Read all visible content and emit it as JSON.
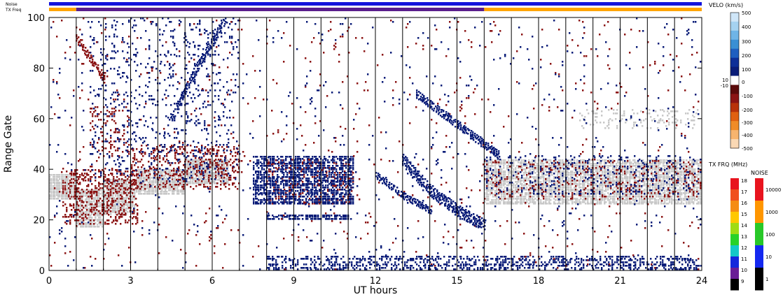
{
  "chart_data": {
    "type": "heatmap",
    "xlabel": "UT hours",
    "ylabel": "Range Gate",
    "xlim": [
      0,
      24
    ],
    "ylim": [
      0,
      100
    ],
    "x_ticks": [
      0,
      3,
      6,
      9,
      12,
      15,
      18,
      21,
      24
    ],
    "y_ticks": [
      0,
      20,
      40,
      60,
      80,
      100
    ],
    "bar_labels": {
      "noise": "Noise",
      "txfreq": "TX Freq"
    },
    "noise_bar": {
      "color": "#1414dc"
    },
    "txfreq_bar": {
      "segments": [
        {
          "x0": 0,
          "x1": 1,
          "color": "#ffa500"
        },
        {
          "x0": 1,
          "x1": 16,
          "color": "#5a1e8c"
        },
        {
          "x0": 16,
          "x1": 24,
          "color": "#ffa500"
        }
      ]
    },
    "scan_boundaries_ut": [
      1,
      2,
      3,
      4,
      5,
      6,
      7,
      8,
      9,
      10,
      11,
      12,
      13,
      14,
      15,
      16,
      17,
      18,
      19,
      20,
      21,
      22,
      23
    ],
    "velocity_scale": {
      "title": "VELO (km/s)",
      "ticks": [
        "500",
        "400",
        "300",
        "200",
        "100",
        "0",
        "10",
        "-10",
        "-100",
        "-200",
        "-300",
        "-400",
        "-500"
      ],
      "colors_top_to_bottom": [
        "#cfe6f8",
        "#a5d2f0",
        "#6fb4e6",
        "#3a8fd4",
        "#1f5fc0",
        "#0e2f98",
        "#0a1c78",
        "#ffffff",
        "#5a0a0a",
        "#8b1414",
        "#b8320a",
        "#e06010",
        "#f08c28",
        "#f7b46e",
        "#fad8b4"
      ]
    },
    "txfreq_scale": {
      "title": "TX FRQ (MHz)",
      "labels": [
        "18",
        "17",
        "16",
        "15",
        "14",
        "13",
        "12",
        "11",
        "10",
        "9"
      ],
      "colors_top_to_bottom": [
        "#e8141e",
        "#f0501e",
        "#f58c14",
        "#ffc800",
        "#a0dc14",
        "#28d228",
        "#14c8c8",
        "#1428dc",
        "#6a1e96",
        "#000000"
      ]
    },
    "noise_scale": {
      "title": "NOISE",
      "labels": [
        "10000",
        "1000",
        "100",
        "10",
        "1"
      ],
      "colors_top_to_bottom": [
        "#e8141e",
        "#ff9600",
        "#28c828",
        "#1428f0",
        "#000000"
      ]
    },
    "colors": {
      "ground_scatter": "#c8c8c8",
      "positive_velocity": "#0a1c78",
      "negative_velocity": "#8b1414"
    },
    "regions": [
      {
        "kind": "ground",
        "x0": 0.0,
        "x1": 1.0,
        "y0": 28,
        "y1": 38,
        "density": 0.9
      },
      {
        "kind": "ground",
        "x0": 1.0,
        "x1": 2.0,
        "y0": 17,
        "y1": 32,
        "density": 0.8
      },
      {
        "kind": "ground",
        "x0": 2.0,
        "x1": 3.2,
        "y0": 22,
        "y1": 36,
        "density": 0.8
      },
      {
        "kind": "ground",
        "x0": 3.2,
        "x1": 5.0,
        "y0": 30,
        "y1": 40,
        "density": 0.85
      },
      {
        "kind": "ground",
        "x0": 5.0,
        "x1": 6.6,
        "y0": 34,
        "y1": 44,
        "density": 0.85
      },
      {
        "kind": "ground",
        "x0": 16.0,
        "x1": 24.0,
        "y0": 26,
        "y1": 44,
        "density": 0.75
      },
      {
        "kind": "ground",
        "x0": 19.5,
        "x1": 24.0,
        "y0": 56,
        "y1": 64,
        "density": 0.15
      },
      {
        "kind": "negative",
        "x0": 0.5,
        "x1": 3.3,
        "y0": 18,
        "y1": 40,
        "density": 0.3
      },
      {
        "kind": "negative",
        "x0": 3.0,
        "x1": 7.0,
        "y0": 32,
        "y1": 50,
        "density": 0.25
      },
      {
        "kind": "negative",
        "x0": 1.5,
        "x1": 3.0,
        "y0": 45,
        "y1": 65,
        "density": 0.15
      },
      {
        "kind": "negative",
        "x0": 16.0,
        "x1": 24.0,
        "y0": 28,
        "y1": 44,
        "density": 0.12
      },
      {
        "kind": "negative",
        "x0": 8.0,
        "x1": 11.2,
        "y0": 26,
        "y1": 44,
        "density": 0.25
      },
      {
        "kind": "positive",
        "x0": 7.5,
        "x1": 11.2,
        "y0": 26,
        "y1": 45,
        "density": 0.6
      },
      {
        "kind": "positive",
        "x0": 8.0,
        "x1": 11.0,
        "y0": 20,
        "y1": 22,
        "density": 0.7
      },
      {
        "kind": "positive",
        "x0": 8.0,
        "x1": 24.0,
        "y0": 0,
        "y1": 6,
        "density": 0.35
      },
      {
        "kind": "positive",
        "x0": 1.5,
        "x1": 7.0,
        "y0": 35,
        "y1": 100,
        "density": 0.08
      },
      {
        "kind": "positive",
        "x0": 16.0,
        "x1": 24.0,
        "y0": 30,
        "y1": 46,
        "density": 0.12
      },
      {
        "kind": "negative",
        "x0": 0.0,
        "x1": 24.0,
        "y0": 0,
        "y1": 100,
        "density": 0.012
      },
      {
        "kind": "positive",
        "x0": 0.0,
        "x1": 24.0,
        "y0": 0,
        "y1": 100,
        "density": 0.012
      }
    ],
    "arcs": [
      {
        "kind": "positive",
        "points": [
          [
            13.0,
            44
          ],
          [
            14.0,
            32
          ],
          [
            15.0,
            24
          ],
          [
            16.0,
            18
          ]
        ],
        "thickness": 6
      },
      {
        "kind": "positive",
        "points": [
          [
            13.5,
            70
          ],
          [
            14.5,
            62
          ],
          [
            15.5,
            54
          ],
          [
            16.5,
            46
          ]
        ],
        "thickness": 4
      },
      {
        "kind": "negative",
        "points": [
          [
            1.0,
            92
          ],
          [
            1.5,
            84
          ],
          [
            2.0,
            76
          ]
        ],
        "thickness": 4
      },
      {
        "kind": "positive",
        "points": [
          [
            4.5,
            60
          ],
          [
            5.0,
            72
          ],
          [
            5.5,
            82
          ],
          [
            6.5,
            100
          ]
        ],
        "thickness": 5
      },
      {
        "kind": "positive",
        "points": [
          [
            12.0,
            38
          ],
          [
            13.0,
            30
          ],
          [
            14.0,
            24
          ]
        ],
        "thickness": 3
      }
    ]
  }
}
